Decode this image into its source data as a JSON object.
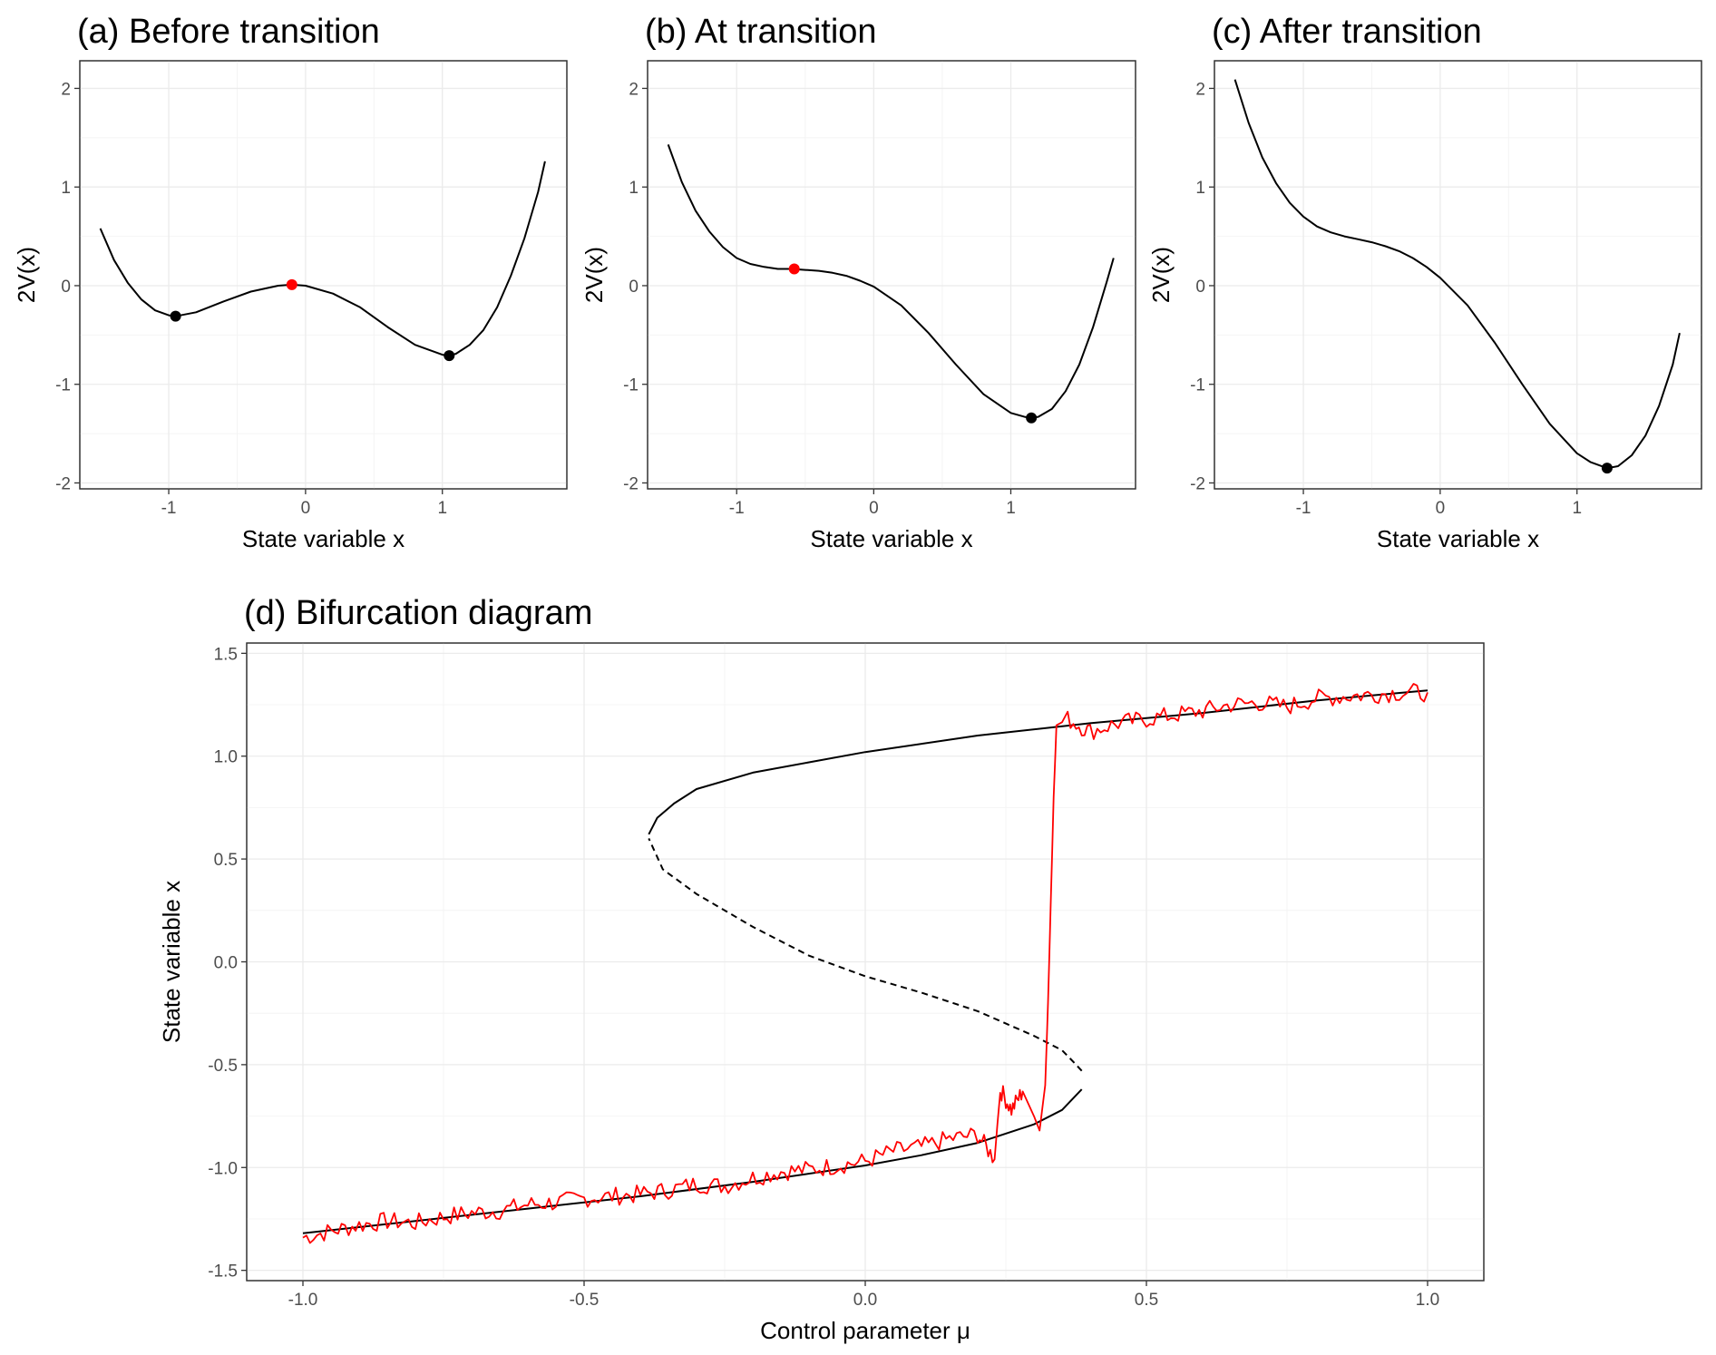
{
  "colors": {
    "curve": "#000000",
    "unstable_point": "#ff0000",
    "stable_point": "#000000",
    "noisy_series": "#ff0000",
    "grid": "#ebebeb",
    "panel_border": "#333333",
    "tick_text": "#4d4d4d"
  },
  "chart_data": [
    {
      "type": "line",
      "title": "(a) Before transition",
      "xlabel": "State variable x",
      "ylabel": "2V(x)",
      "xlim": [
        -1.65,
        1.91
      ],
      "ylim": [
        -2.06,
        2.28
      ],
      "xticks": [
        -1,
        0,
        1
      ],
      "xtick_labels": [
        "-1",
        "0",
        "1"
      ],
      "yticks": [
        -2,
        -1,
        0,
        1,
        2
      ],
      "ytick_labels": [
        "-2",
        "-1",
        "0",
        "1",
        "2"
      ],
      "grid": true,
      "series": [
        {
          "style": "solid",
          "x": [
            -1.5,
            -1.4,
            -1.3,
            -1.2,
            -1.1,
            -1.0,
            -0.95,
            -0.8,
            -0.6,
            -0.4,
            -0.2,
            -0.1,
            0.0,
            0.2,
            0.4,
            0.6,
            0.8,
            1.0,
            1.05,
            1.1,
            1.2,
            1.3,
            1.4,
            1.5,
            1.6,
            1.7,
            1.75
          ],
          "y": [
            0.58,
            0.26,
            0.03,
            -0.14,
            -0.25,
            -0.3,
            -0.31,
            -0.27,
            -0.16,
            -0.06,
            0.0,
            0.01,
            0.0,
            -0.08,
            -0.22,
            -0.42,
            -0.6,
            -0.7,
            -0.71,
            -0.69,
            -0.6,
            -0.45,
            -0.22,
            0.1,
            0.48,
            0.95,
            1.26
          ]
        }
      ],
      "points": [
        {
          "x": -0.95,
          "y": -0.31,
          "kind": "stable"
        },
        {
          "x": -0.1,
          "y": 0.01,
          "kind": "unstable"
        },
        {
          "x": 1.05,
          "y": -0.71,
          "kind": "stable"
        }
      ]
    },
    {
      "type": "line",
      "title": "(b) At transition",
      "xlabel": "State variable x",
      "ylabel": "2V(x)",
      "xlim": [
        -1.65,
        1.91
      ],
      "ylim": [
        -2.06,
        2.28
      ],
      "xticks": [
        -1,
        0,
        1
      ],
      "xtick_labels": [
        "-1",
        "0",
        "1"
      ],
      "yticks": [
        -2,
        -1,
        0,
        1,
        2
      ],
      "ytick_labels": [
        "-2",
        "-1",
        "0",
        "1",
        "2"
      ],
      "grid": true,
      "series": [
        {
          "style": "solid",
          "x": [
            -1.5,
            -1.4,
            -1.3,
            -1.2,
            -1.1,
            -1.0,
            -0.9,
            -0.8,
            -0.7,
            -0.6,
            -0.5,
            -0.4,
            -0.3,
            -0.2,
            -0.1,
            0.0,
            0.2,
            0.4,
            0.6,
            0.8,
            1.0,
            1.1,
            1.15,
            1.2,
            1.3,
            1.4,
            1.5,
            1.6,
            1.7,
            1.75
          ],
          "y": [
            1.43,
            1.05,
            0.76,
            0.55,
            0.39,
            0.28,
            0.22,
            0.19,
            0.17,
            0.17,
            0.16,
            0.15,
            0.13,
            0.1,
            0.05,
            -0.01,
            -0.2,
            -0.48,
            -0.8,
            -1.1,
            -1.29,
            -1.33,
            -1.34,
            -1.33,
            -1.25,
            -1.07,
            -0.8,
            -0.42,
            0.04,
            0.28
          ]
        }
      ],
      "points": [
        {
          "x": -0.58,
          "y": 0.17,
          "kind": "unstable"
        },
        {
          "x": 1.15,
          "y": -1.34,
          "kind": "stable"
        }
      ]
    },
    {
      "type": "line",
      "title": "(c) After transition",
      "xlabel": "State variable x",
      "ylabel": "2V(x)",
      "xlim": [
        -1.65,
        1.91
      ],
      "ylim": [
        -2.06,
        2.28
      ],
      "xticks": [
        -1,
        0,
        1
      ],
      "xtick_labels": [
        "-1",
        "0",
        "1"
      ],
      "yticks": [
        -2,
        -1,
        0,
        1,
        2
      ],
      "ytick_labels": [
        "-2",
        "-1",
        "0",
        "1",
        "2"
      ],
      "grid": true,
      "series": [
        {
          "style": "solid",
          "x": [
            -1.5,
            -1.4,
            -1.3,
            -1.2,
            -1.1,
            -1.0,
            -0.9,
            -0.8,
            -0.7,
            -0.6,
            -0.5,
            -0.4,
            -0.3,
            -0.2,
            -0.1,
            0.0,
            0.2,
            0.4,
            0.6,
            0.8,
            1.0,
            1.1,
            1.2,
            1.22,
            1.3,
            1.4,
            1.5,
            1.6,
            1.7,
            1.75
          ],
          "y": [
            2.09,
            1.65,
            1.3,
            1.04,
            0.84,
            0.7,
            0.6,
            0.54,
            0.5,
            0.47,
            0.44,
            0.4,
            0.35,
            0.28,
            0.19,
            0.08,
            -0.2,
            -0.58,
            -1.0,
            -1.4,
            -1.7,
            -1.79,
            -1.84,
            -1.85,
            -1.83,
            -1.72,
            -1.52,
            -1.22,
            -0.8,
            -0.48
          ]
        }
      ],
      "points": [
        {
          "x": 1.22,
          "y": -1.85,
          "kind": "stable"
        }
      ]
    },
    {
      "type": "line",
      "title": "(d) Bifurcation diagram",
      "xlabel": "Control parameter μ",
      "ylabel": "State variable x",
      "xlim": [
        -1.1,
        1.1
      ],
      "ylim": [
        -1.55,
        1.55
      ],
      "xticks": [
        -1.0,
        -0.5,
        0.0,
        0.5,
        1.0
      ],
      "xtick_labels": [
        "-1.0",
        "-0.5",
        "0.0",
        "0.5",
        "1.0"
      ],
      "yticks": [
        -1.5,
        -1.0,
        -0.5,
        0.0,
        0.5,
        1.0,
        1.5
      ],
      "ytick_labels": [
        "-1.5",
        "-1.0",
        "-0.5",
        "0.0",
        "0.5",
        "1.0",
        "1.5"
      ],
      "grid": true,
      "series": [
        {
          "style": "solid",
          "x": [
            -1.0,
            -0.8,
            -0.6,
            -0.4,
            -0.2,
            0.0,
            0.1,
            0.2,
            0.3,
            0.35,
            0.385
          ],
          "y": [
            -1.32,
            -1.26,
            -1.2,
            -1.14,
            -1.07,
            -0.99,
            -0.94,
            -0.88,
            -0.79,
            -0.72,
            -0.62
          ]
        },
        {
          "style": "dashed",
          "x": [
            0.385,
            0.375,
            0.35,
            0.3,
            0.2,
            0.1,
            0.0,
            -0.1,
            -0.2,
            -0.3,
            -0.36,
            -0.385
          ],
          "y": [
            -0.53,
            -0.5,
            -0.43,
            -0.36,
            -0.24,
            -0.15,
            -0.07,
            0.03,
            0.17,
            0.33,
            0.45,
            0.6
          ]
        },
        {
          "style": "solid",
          "x": [
            -0.385,
            -0.37,
            -0.34,
            -0.3,
            -0.2,
            -0.1,
            0.0,
            0.2,
            0.4,
            0.6,
            0.8,
            1.0
          ],
          "y": [
            0.62,
            0.7,
            0.77,
            0.84,
            0.92,
            0.97,
            1.02,
            1.1,
            1.16,
            1.21,
            1.27,
            1.32
          ]
        },
        {
          "style": "noisy",
          "x": [
            -1.0,
            -0.95,
            -0.9,
            -0.85,
            -0.8,
            -0.75,
            -0.7,
            -0.65,
            -0.6,
            -0.55,
            -0.5,
            -0.45,
            -0.4,
            -0.35,
            -0.3,
            -0.25,
            -0.2,
            -0.15,
            -0.1,
            -0.05,
            0.0,
            0.05,
            0.1,
            0.15,
            0.2,
            0.23,
            0.24,
            0.26,
            0.28,
            0.3,
            0.31,
            0.32,
            0.325,
            0.33,
            0.335,
            0.34,
            0.36,
            0.4,
            0.45,
            0.5,
            0.55,
            0.6,
            0.65,
            0.7,
            0.75,
            0.8,
            0.85,
            0.9,
            0.95,
            1.0
          ],
          "y": [
            -1.34,
            -1.31,
            -1.28,
            -1.26,
            -1.27,
            -1.24,
            -1.22,
            -1.21,
            -1.18,
            -1.17,
            -1.15,
            -1.14,
            -1.13,
            -1.11,
            -1.08,
            -1.09,
            -1.05,
            -1.02,
            -1.01,
            -0.99,
            -0.97,
            -0.92,
            -0.9,
            -0.86,
            -0.84,
            -0.96,
            -0.62,
            -0.72,
            -0.63,
            -0.75,
            -0.82,
            -0.6,
            -0.2,
            0.3,
            0.8,
            1.15,
            1.18,
            1.12,
            1.16,
            1.18,
            1.2,
            1.22,
            1.25,
            1.26,
            1.24,
            1.28,
            1.29,
            1.3,
            1.31,
            1.31
          ]
        }
      ]
    }
  ]
}
